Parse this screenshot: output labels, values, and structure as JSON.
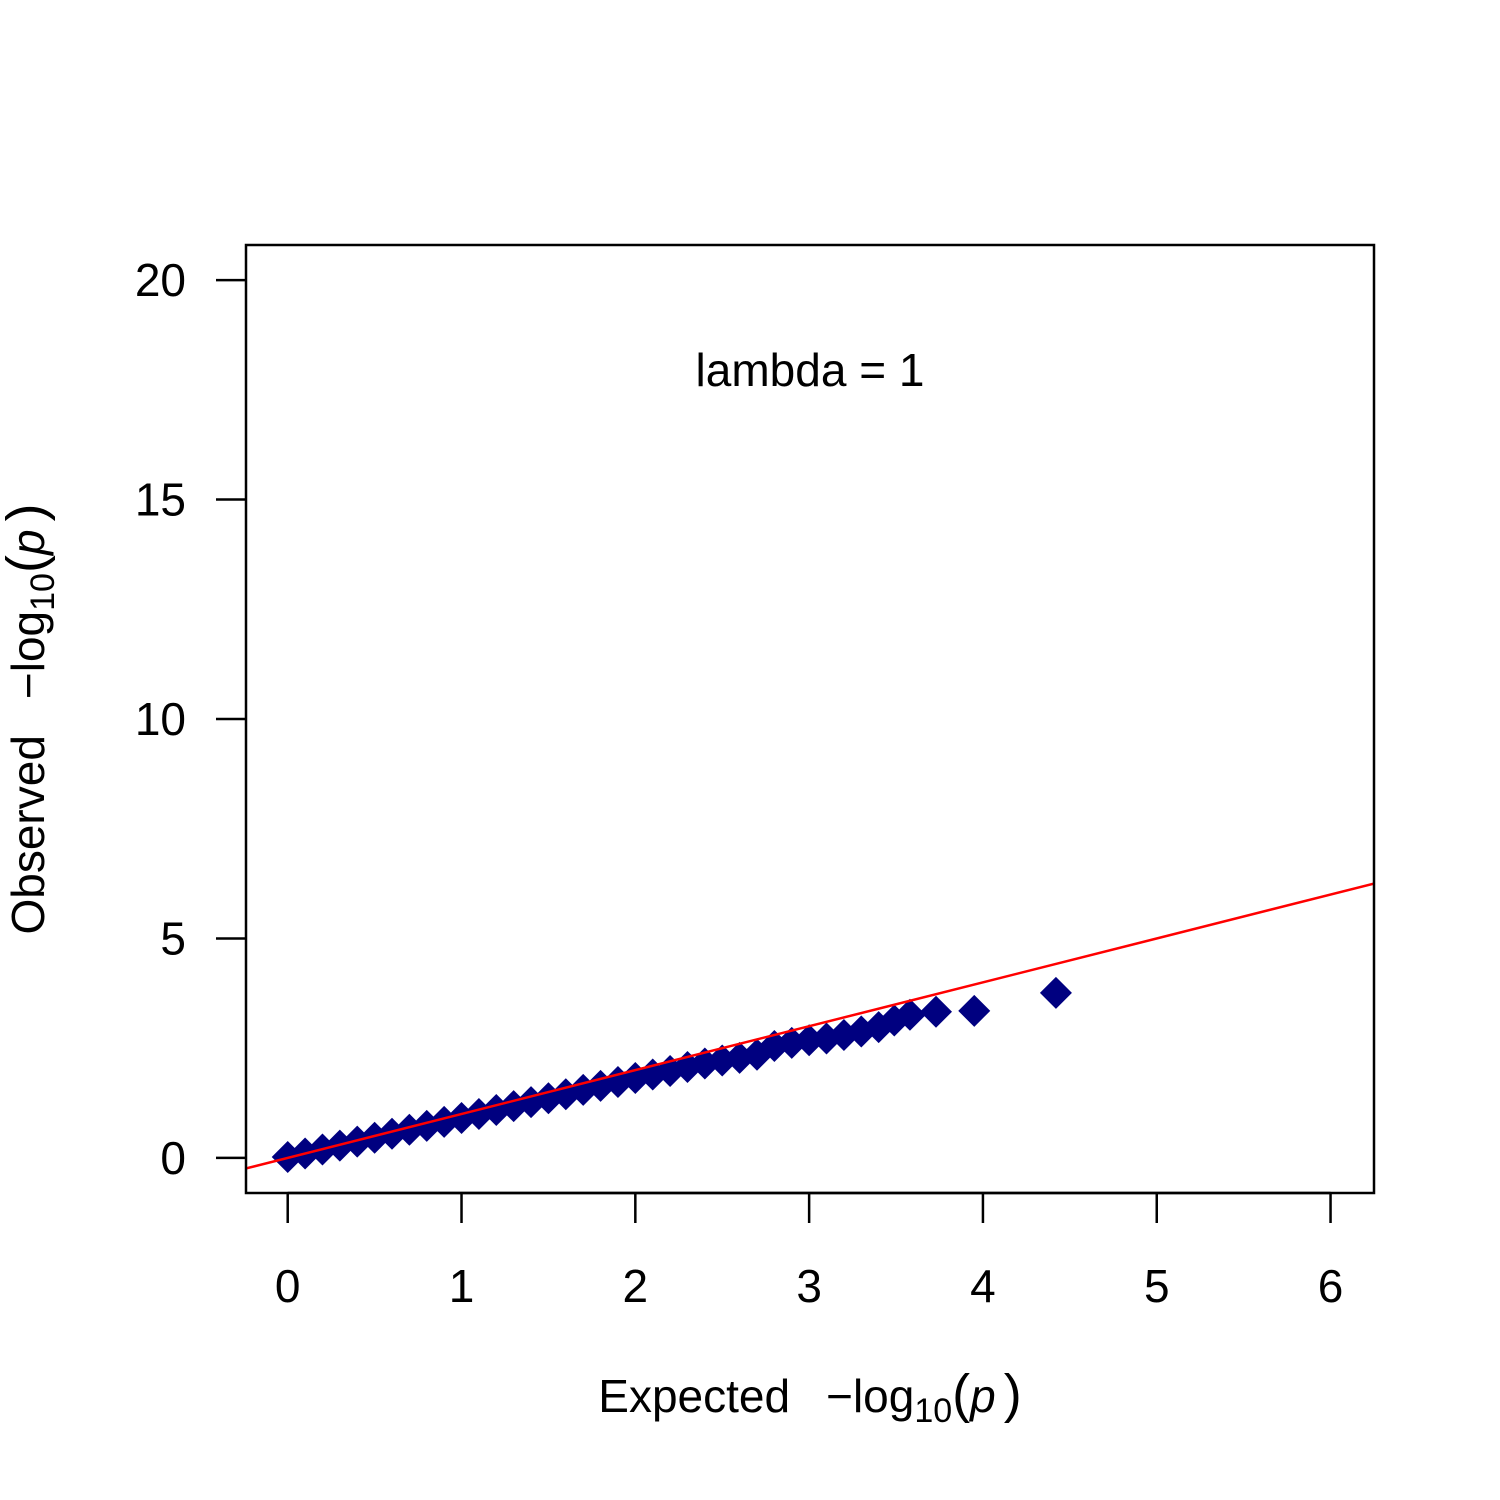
{
  "chart_data": {
    "type": "scatter",
    "annotation": "lambda = 1",
    "xlabel": {
      "text": "Expected",
      "func": "−log",
      "sub": "10",
      "open": "(",
      "var": "p",
      "close": ")"
    },
    "ylabel": {
      "text": "Observed",
      "func": "−log",
      "sub": "10",
      "open": "(",
      "var": "p",
      "close": ")"
    },
    "xlim": [
      -0.24,
      6.25
    ],
    "ylim": [
      -0.8,
      20.8
    ],
    "xticks": [
      0,
      1,
      2,
      3,
      4,
      5,
      6
    ],
    "yticks": [
      0,
      5,
      10,
      15,
      20
    ],
    "reference_line": {
      "intercept": 0,
      "slope": 1,
      "color": "#ff0000"
    },
    "series": [
      {
        "color": "#000080",
        "x": [
          0,
          0.1,
          0.2,
          0.3,
          0.4,
          0.5,
          0.6,
          0.7,
          0.8,
          0.9,
          1.0,
          1.1,
          1.2,
          1.3,
          1.4,
          1.5,
          1.6,
          1.7,
          1.8,
          1.9,
          2.0,
          2.1,
          2.2,
          2.3,
          2.4,
          2.5,
          2.6,
          2.7,
          2.8,
          2.9,
          3.0,
          3.1,
          3.2,
          3.3,
          3.4,
          3.49,
          3.58,
          3.73,
          3.95,
          4.42
        ],
        "values": [
          0.02,
          0.1,
          0.19,
          0.28,
          0.37,
          0.46,
          0.55,
          0.64,
          0.73,
          0.82,
          0.91,
          1.0,
          1.09,
          1.18,
          1.27,
          1.36,
          1.45,
          1.55,
          1.64,
          1.73,
          1.82,
          1.9,
          1.98,
          2.07,
          2.15,
          2.22,
          2.28,
          2.35,
          2.55,
          2.62,
          2.68,
          2.72,
          2.8,
          2.88,
          2.98,
          3.13,
          3.26,
          3.33,
          3.35,
          3.76
        ]
      }
    ]
  }
}
